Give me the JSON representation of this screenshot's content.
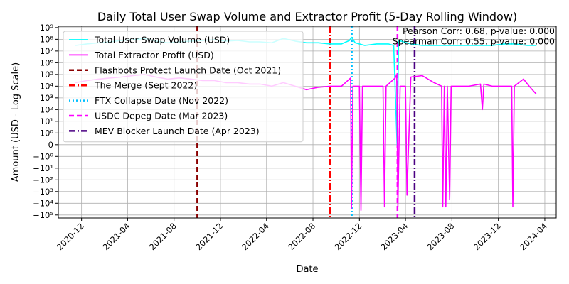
{
  "chart_data": {
    "type": "line",
    "title": "Daily Total User Swap Volume and Extractor Profit (5-Day Rolling Window)",
    "xlabel": "Date",
    "ylabel": "Amount (USD - Log Scale)",
    "y_scale": "symlog",
    "xlim": [
      "2020-10-01",
      "2024-05-01"
    ],
    "x_ticks": [
      "2020-12",
      "2021-04",
      "2021-08",
      "2021-12",
      "2022-04",
      "2022-08",
      "2022-12",
      "2023-04",
      "2023-08",
      "2023-12",
      "2024-04"
    ],
    "y_ticks": [
      {
        "value": -100000,
        "label": "−10⁵"
      },
      {
        "value": -10000,
        "label": "−10⁴"
      },
      {
        "value": -1000,
        "label": "−10³"
      },
      {
        "value": -100,
        "label": "−10²"
      },
      {
        "value": -10,
        "label": "−10¹"
      },
      {
        "value": -1,
        "label": "−10⁰"
      },
      {
        "value": 0,
        "label": "0"
      },
      {
        "value": 1,
        "label": "10⁰"
      },
      {
        "value": 10,
        "label": "10¹"
      },
      {
        "value": 100,
        "label": "10²"
      },
      {
        "value": 1000,
        "label": "10³"
      },
      {
        "value": 10000,
        "label": "10⁴"
      },
      {
        "value": 100000,
        "label": "10⁵"
      },
      {
        "value": 1000000,
        "label": "10⁶"
      },
      {
        "value": 10000000,
        "label": "10⁷"
      },
      {
        "value": 100000000,
        "label": "10⁸"
      },
      {
        "value": 1000000000,
        "label": "10⁹"
      }
    ],
    "grid": true,
    "legend_position": "upper-left",
    "series": [
      {
        "name": "Total User Swap Volume (USD)",
        "color": "#00ffff",
        "points": [
          [
            "2020-11-15",
            30000000
          ],
          [
            "2020-12-15",
            40000000
          ],
          [
            "2021-01-15",
            50000000
          ],
          [
            "2021-02-15",
            60000000
          ],
          [
            "2021-03-15",
            80000000
          ],
          [
            "2021-04-15",
            90000000
          ],
          [
            "2021-05-15",
            120000000
          ],
          [
            "2021-06-15",
            70000000
          ],
          [
            "2021-07-15",
            50000000
          ],
          [
            "2021-08-15",
            60000000
          ],
          [
            "2021-09-15",
            70000000
          ],
          [
            "2021-10-15",
            80000000
          ],
          [
            "2021-11-15",
            90000000
          ],
          [
            "2021-12-15",
            70000000
          ],
          [
            "2022-01-15",
            80000000
          ],
          [
            "2022-02-15",
            60000000
          ],
          [
            "2022-03-15",
            60000000
          ],
          [
            "2022-04-15",
            50000000
          ],
          [
            "2022-05-15",
            120000000
          ],
          [
            "2022-06-15",
            70000000
          ],
          [
            "2022-07-15",
            50000000
          ],
          [
            "2022-08-15",
            50000000
          ],
          [
            "2022-09-15",
            40000000
          ],
          [
            "2022-10-15",
            40000000
          ],
          [
            "2022-11-05",
            80000000
          ],
          [
            "2022-11-10",
            150000000
          ],
          [
            "2022-11-20",
            50000000
          ],
          [
            "2022-12-15",
            30000000
          ],
          [
            "2023-01-15",
            40000000
          ],
          [
            "2023-02-15",
            40000000
          ],
          [
            "2023-03-01",
            30000000
          ],
          [
            "2023-03-10",
            0
          ],
          [
            "2023-03-14",
            80000000
          ],
          [
            "2023-04-15",
            40000000
          ],
          [
            "2023-05-15",
            30000000
          ],
          [
            "2023-06-15",
            30000000
          ],
          [
            "2023-07-15",
            30000000
          ],
          [
            "2023-08-15",
            30000000
          ],
          [
            "2023-09-15",
            30000000
          ],
          [
            "2023-10-15",
            30000000
          ],
          [
            "2023-11-15",
            30000000
          ],
          [
            "2023-12-15",
            40000000
          ],
          [
            "2024-01-15",
            40000000
          ],
          [
            "2024-02-15",
            30000000
          ],
          [
            "2024-03-10",
            30000000
          ]
        ]
      },
      {
        "name": "Total Extractor Profit (USD)",
        "color": "#ff00ff",
        "points": [
          [
            "2020-11-15",
            20000
          ],
          [
            "2020-12-15",
            30000
          ],
          [
            "2021-01-15",
            40000
          ],
          [
            "2021-02-15",
            50000
          ],
          [
            "2021-03-15",
            60000
          ],
          [
            "2021-04-15",
            80000
          ],
          [
            "2021-05-15",
            100000
          ],
          [
            "2021-06-15",
            60000
          ],
          [
            "2021-07-15",
            40000
          ],
          [
            "2021-08-15",
            50000
          ],
          [
            "2021-09-15",
            40000
          ],
          [
            "2021-10-15",
            30000
          ],
          [
            "2021-11-15",
            30000
          ],
          [
            "2021-12-15",
            20000
          ],
          [
            "2022-01-15",
            20000
          ],
          [
            "2022-02-15",
            15000
          ],
          [
            "2022-03-15",
            15000
          ],
          [
            "2022-04-15",
            10000
          ],
          [
            "2022-05-15",
            20000
          ],
          [
            "2022-06-15",
            10000
          ],
          [
            "2022-07-15",
            5000
          ],
          [
            "2022-08-15",
            8000
          ],
          [
            "2022-09-15",
            10000
          ],
          [
            "2022-10-15",
            10000
          ],
          [
            "2022-11-08",
            50000
          ],
          [
            "2022-11-10",
            -30000
          ],
          [
            "2022-11-14",
            10000
          ],
          [
            "2022-12-01",
            10000
          ],
          [
            "2022-12-05",
            -40000
          ],
          [
            "2022-12-09",
            10000
          ],
          [
            "2023-01-15",
            10000
          ],
          [
            "2023-02-01",
            10000
          ],
          [
            "2023-02-05",
            -20000
          ],
          [
            "2023-02-09",
            10000
          ],
          [
            "2023-03-05",
            50000
          ],
          [
            "2023-03-09",
            100000
          ],
          [
            "2023-03-12",
            -20000
          ],
          [
            "2023-03-18",
            10000
          ],
          [
            "2023-04-01",
            10000
          ],
          [
            "2023-04-05",
            -2000
          ],
          [
            "2023-04-15",
            60000
          ],
          [
            "2023-05-15",
            80000
          ],
          [
            "2023-06-15",
            20000
          ],
          [
            "2023-07-05",
            10000
          ],
          [
            "2023-07-08",
            -20000
          ],
          [
            "2023-07-12",
            10000
          ],
          [
            "2023-07-16",
            -20000
          ],
          [
            "2023-07-20",
            10000
          ],
          [
            "2023-07-26",
            -5000
          ],
          [
            "2023-07-30",
            10000
          ],
          [
            "2023-09-15",
            10000
          ],
          [
            "2023-10-15",
            15000
          ],
          [
            "2023-10-20",
            100
          ],
          [
            "2023-10-24",
            15000
          ],
          [
            "2023-11-15",
            10000
          ],
          [
            "2023-12-15",
            10000
          ],
          [
            "2024-01-05",
            10000
          ],
          [
            "2024-01-08",
            -20000
          ],
          [
            "2024-01-12",
            10000
          ],
          [
            "2024-02-05",
            40000
          ],
          [
            "2024-02-20",
            10000
          ],
          [
            "2024-03-10",
            2000
          ]
        ]
      }
    ],
    "events": [
      {
        "name": "Flashbots Protect Launch Date (Oct 2021)",
        "date": "2021-10-01",
        "color": "#8b0000",
        "style": "dashed"
      },
      {
        "name": "The Merge (Sept 2022)",
        "date": "2022-09-15",
        "color": "#ff0000",
        "style": "dashdot"
      },
      {
        "name": "FTX Collapse Date (Nov 2022)",
        "date": "2022-11-11",
        "color": "#00bfff",
        "style": "dotted"
      },
      {
        "name": "USDC Depeg Date (Mar 2023)",
        "date": "2023-03-11",
        "color": "#ff00ff",
        "style": "dashed"
      },
      {
        "name": "MEV Blocker Launch Date (Apr 2023)",
        "date": "2023-04-25",
        "color": "#4b0082",
        "style": "dashdot"
      }
    ],
    "annotations": [
      "Pearson Corr: 0.68, p-value: 0.000",
      "Spearman Corr: 0.55, p-value: 0.000"
    ]
  }
}
